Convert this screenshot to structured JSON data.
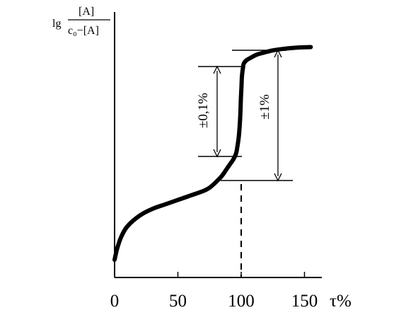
{
  "chart_data": {
    "type": "line",
    "title": "",
    "xlabel": "τ%",
    "ylabel": {
      "prefix": "lg",
      "numerator": "[A]",
      "denominator": "c₀−[A]"
    },
    "x_ticks": [
      "0",
      "50",
      "100",
      "150"
    ],
    "xlim": [
      0,
      160
    ],
    "series": [
      {
        "x": [
          0,
          2,
          5,
          10,
          20,
          30,
          40,
          50,
          60,
          70,
          75,
          80,
          85,
          88,
          91,
          94,
          96,
          97,
          98,
          98.5,
          99,
          99.5,
          99.8,
          100.2,
          100.5,
          101,
          101.5,
          102,
          104,
          107,
          112,
          118,
          125,
          135,
          145,
          155
        ],
        "y": [
          0.08,
          0.13,
          0.18,
          0.23,
          0.28,
          0.31,
          0.33,
          0.35,
          0.37,
          0.39,
          0.405,
          0.43,
          0.46,
          0.485,
          0.51,
          0.535,
          0.56,
          0.59,
          0.63,
          0.66,
          0.7,
          0.76,
          0.81,
          0.86,
          0.9,
          0.93,
          0.95,
          0.965,
          0.98,
          0.99,
          1.005,
          1.015,
          1.025,
          1.033,
          1.038,
          1.04
        ]
      }
    ],
    "equivalence_point": 100,
    "annotations": [
      {
        "label": "±0,1%"
      },
      {
        "label": "±1%"
      }
    ]
  }
}
